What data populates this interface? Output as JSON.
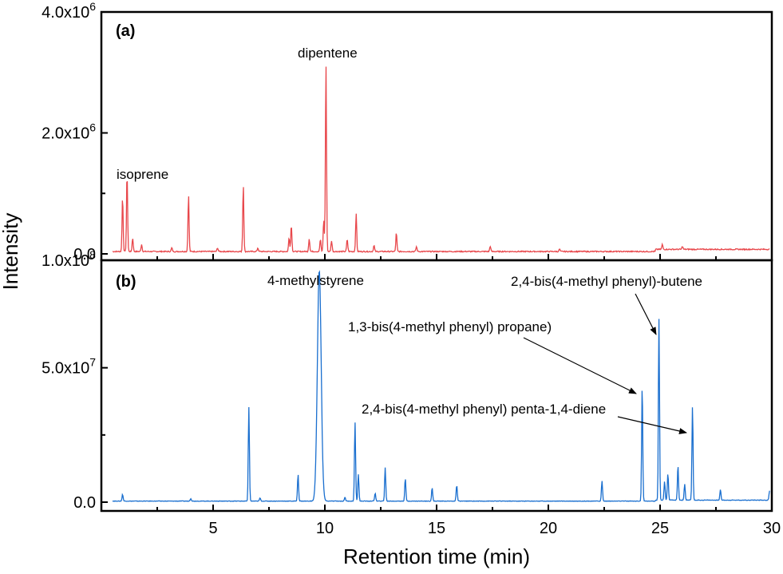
{
  "chart_data": {
    "type": "line",
    "xlabel": "Retention time (min)",
    "ylabel": "Intensity",
    "x_ticks": [
      "5",
      "10",
      "15",
      "20",
      "25",
      "30"
    ],
    "xlim": [
      0,
      30
    ],
    "grid": false,
    "panels": [
      {
        "label": "(a)",
        "color": "#e8474b",
        "ylim": [
          0,
          4000000
        ],
        "y_tick_values": [
          0,
          2000000,
          4000000
        ],
        "y_ticks": [
          "0.0",
          "2.0x10",
          "4.0x10"
        ],
        "y_tick_exps": [
          "",
          "6",
          "6"
        ],
        "baseline": 30000,
        "peaks": [
          {
            "x": 0.95,
            "y": 900000
          },
          {
            "x": 1.15,
            "y": 1300000
          },
          {
            "x": 1.4,
            "y": 220000
          },
          {
            "x": 1.8,
            "y": 120000
          },
          {
            "x": 3.15,
            "y": 60000
          },
          {
            "x": 3.9,
            "y": 930000
          },
          {
            "x": 5.2,
            "y": 60000
          },
          {
            "x": 6.35,
            "y": 1100000
          },
          {
            "x": 7.0,
            "y": 60000
          },
          {
            "x": 8.4,
            "y": 230000
          },
          {
            "x": 8.5,
            "y": 440000
          },
          {
            "x": 9.3,
            "y": 210000
          },
          {
            "x": 9.8,
            "y": 200000
          },
          {
            "x": 9.95,
            "y": 520000
          },
          {
            "x": 10.05,
            "y": 3120000
          },
          {
            "x": 10.3,
            "y": 180000
          },
          {
            "x": 11.0,
            "y": 200000
          },
          {
            "x": 11.4,
            "y": 620000
          },
          {
            "x": 12.2,
            "y": 100000
          },
          {
            "x": 13.2,
            "y": 310000
          },
          {
            "x": 14.1,
            "y": 80000
          },
          {
            "x": 17.4,
            "y": 90000
          },
          {
            "x": 20.5,
            "y": 40000
          },
          {
            "x": 25.1,
            "y": 80000
          },
          {
            "x": 26.0,
            "y": 50000
          }
        ],
        "annotations": [
          {
            "text": "isoprene",
            "x": 1.15,
            "y": 1300000
          },
          {
            "text": "dipentene",
            "x": 10.05,
            "y": 3120000
          }
        ]
      },
      {
        "label": "(b)",
        "color": "#1a6fcf",
        "ylim": [
          0,
          90000000
        ],
        "y_tick_values": [
          0,
          50000000
        ],
        "y_ticks": [
          "0.0",
          "5.0x10"
        ],
        "y_tick_exps": [
          "",
          "7"
        ],
        "baseline": 300000,
        "peaks": [
          {
            "x": 0.95,
            "y": 2500000
          },
          {
            "x": 4.0,
            "y": 1000000
          },
          {
            "x": 6.6,
            "y": 35000000
          },
          {
            "x": 7.1,
            "y": 1200000
          },
          {
            "x": 8.8,
            "y": 10000000
          },
          {
            "x": 9.75,
            "y": 86000000
          },
          {
            "x": 10.9,
            "y": 1500000
          },
          {
            "x": 11.35,
            "y": 29500000
          },
          {
            "x": 11.5,
            "y": 10000000
          },
          {
            "x": 12.25,
            "y": 3000000
          },
          {
            "x": 12.7,
            "y": 12500000
          },
          {
            "x": 13.6,
            "y": 8500000
          },
          {
            "x": 14.8,
            "y": 5000000
          },
          {
            "x": 15.9,
            "y": 6000000
          },
          {
            "x": 22.4,
            "y": 7500000
          },
          {
            "x": 24.2,
            "y": 43500000
          },
          {
            "x": 24.95,
            "y": 67500000
          },
          {
            "x": 25.2,
            "y": 7000000
          },
          {
            "x": 25.35,
            "y": 10000000
          },
          {
            "x": 25.8,
            "y": 13000000
          },
          {
            "x": 26.1,
            "y": 6000000
          },
          {
            "x": 26.45,
            "y": 35000000
          },
          {
            "x": 27.7,
            "y": 4000000
          },
          {
            "x": 29.9,
            "y": 3500000
          }
        ],
        "annotations": [
          {
            "text": "4-methylstyrene",
            "x": 9.75,
            "y": 86000000
          },
          {
            "text": "2,4-bis(4-methyl phenyl)-butene",
            "x": 24.95,
            "y": 67500000
          },
          {
            "text": "1,3-bis(4-methyl phenyl) propane)",
            "x": 24.2,
            "y": 43500000
          },
          {
            "text": "2,4-bis(4-methyl phenyl) penta-1,4-diene",
            "x": 26.45,
            "y": 35000000
          }
        ]
      }
    ],
    "extra_label": "1.0x10",
    "extra_label_exp": "8"
  }
}
